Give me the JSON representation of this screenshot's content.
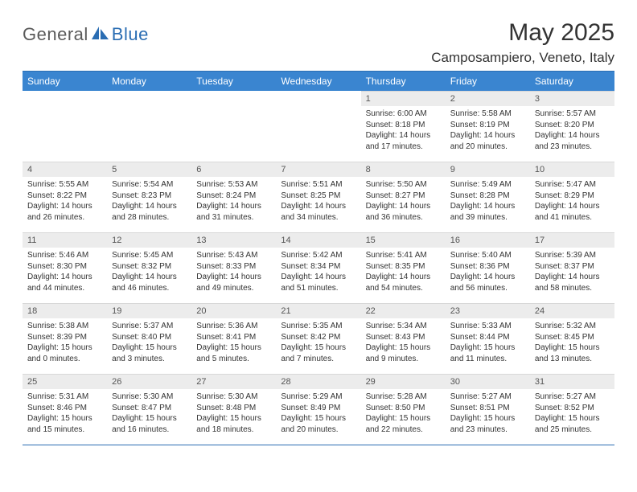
{
  "logo": {
    "first": "General",
    "second": "Blue"
  },
  "title": "May 2025",
  "location": "Camposampiero, Veneto, Italy",
  "colors": {
    "header_bg": "#3a85d0",
    "header_text": "#ffffff",
    "border": "#2a6db3",
    "daynum_bg": "#ececec",
    "text": "#333333",
    "logo_gray": "#5a5a5a",
    "logo_blue": "#2a6db3"
  },
  "typography": {
    "title_fontsize": 30,
    "location_fontsize": 17,
    "header_fontsize": 12,
    "cell_fontsize": 10
  },
  "daysOfWeek": [
    "Sunday",
    "Monday",
    "Tuesday",
    "Wednesday",
    "Thursday",
    "Friday",
    "Saturday"
  ],
  "weeks": [
    [
      null,
      null,
      null,
      null,
      {
        "n": "1",
        "sr": "6:00 AM",
        "ss": "8:18 PM",
        "dl": "14 hours and 17 minutes."
      },
      {
        "n": "2",
        "sr": "5:58 AM",
        "ss": "8:19 PM",
        "dl": "14 hours and 20 minutes."
      },
      {
        "n": "3",
        "sr": "5:57 AM",
        "ss": "8:20 PM",
        "dl": "14 hours and 23 minutes."
      }
    ],
    [
      {
        "n": "4",
        "sr": "5:55 AM",
        "ss": "8:22 PM",
        "dl": "14 hours and 26 minutes."
      },
      {
        "n": "5",
        "sr": "5:54 AM",
        "ss": "8:23 PM",
        "dl": "14 hours and 28 minutes."
      },
      {
        "n": "6",
        "sr": "5:53 AM",
        "ss": "8:24 PM",
        "dl": "14 hours and 31 minutes."
      },
      {
        "n": "7",
        "sr": "5:51 AM",
        "ss": "8:25 PM",
        "dl": "14 hours and 34 minutes."
      },
      {
        "n": "8",
        "sr": "5:50 AM",
        "ss": "8:27 PM",
        "dl": "14 hours and 36 minutes."
      },
      {
        "n": "9",
        "sr": "5:49 AM",
        "ss": "8:28 PM",
        "dl": "14 hours and 39 minutes."
      },
      {
        "n": "10",
        "sr": "5:47 AM",
        "ss": "8:29 PM",
        "dl": "14 hours and 41 minutes."
      }
    ],
    [
      {
        "n": "11",
        "sr": "5:46 AM",
        "ss": "8:30 PM",
        "dl": "14 hours and 44 minutes."
      },
      {
        "n": "12",
        "sr": "5:45 AM",
        "ss": "8:32 PM",
        "dl": "14 hours and 46 minutes."
      },
      {
        "n": "13",
        "sr": "5:43 AM",
        "ss": "8:33 PM",
        "dl": "14 hours and 49 minutes."
      },
      {
        "n": "14",
        "sr": "5:42 AM",
        "ss": "8:34 PM",
        "dl": "14 hours and 51 minutes."
      },
      {
        "n": "15",
        "sr": "5:41 AM",
        "ss": "8:35 PM",
        "dl": "14 hours and 54 minutes."
      },
      {
        "n": "16",
        "sr": "5:40 AM",
        "ss": "8:36 PM",
        "dl": "14 hours and 56 minutes."
      },
      {
        "n": "17",
        "sr": "5:39 AM",
        "ss": "8:37 PM",
        "dl": "14 hours and 58 minutes."
      }
    ],
    [
      {
        "n": "18",
        "sr": "5:38 AM",
        "ss": "8:39 PM",
        "dl": "15 hours and 0 minutes."
      },
      {
        "n": "19",
        "sr": "5:37 AM",
        "ss": "8:40 PM",
        "dl": "15 hours and 3 minutes."
      },
      {
        "n": "20",
        "sr": "5:36 AM",
        "ss": "8:41 PM",
        "dl": "15 hours and 5 minutes."
      },
      {
        "n": "21",
        "sr": "5:35 AM",
        "ss": "8:42 PM",
        "dl": "15 hours and 7 minutes."
      },
      {
        "n": "22",
        "sr": "5:34 AM",
        "ss": "8:43 PM",
        "dl": "15 hours and 9 minutes."
      },
      {
        "n": "23",
        "sr": "5:33 AM",
        "ss": "8:44 PM",
        "dl": "15 hours and 11 minutes."
      },
      {
        "n": "24",
        "sr": "5:32 AM",
        "ss": "8:45 PM",
        "dl": "15 hours and 13 minutes."
      }
    ],
    [
      {
        "n": "25",
        "sr": "5:31 AM",
        "ss": "8:46 PM",
        "dl": "15 hours and 15 minutes."
      },
      {
        "n": "26",
        "sr": "5:30 AM",
        "ss": "8:47 PM",
        "dl": "15 hours and 16 minutes."
      },
      {
        "n": "27",
        "sr": "5:30 AM",
        "ss": "8:48 PM",
        "dl": "15 hours and 18 minutes."
      },
      {
        "n": "28",
        "sr": "5:29 AM",
        "ss": "8:49 PM",
        "dl": "15 hours and 20 minutes."
      },
      {
        "n": "29",
        "sr": "5:28 AM",
        "ss": "8:50 PM",
        "dl": "15 hours and 22 minutes."
      },
      {
        "n": "30",
        "sr": "5:27 AM",
        "ss": "8:51 PM",
        "dl": "15 hours and 23 minutes."
      },
      {
        "n": "31",
        "sr": "5:27 AM",
        "ss": "8:52 PM",
        "dl": "15 hours and 25 minutes."
      }
    ]
  ],
  "labels": {
    "sunrise": "Sunrise:",
    "sunset": "Sunset:",
    "daylight": "Daylight:"
  }
}
